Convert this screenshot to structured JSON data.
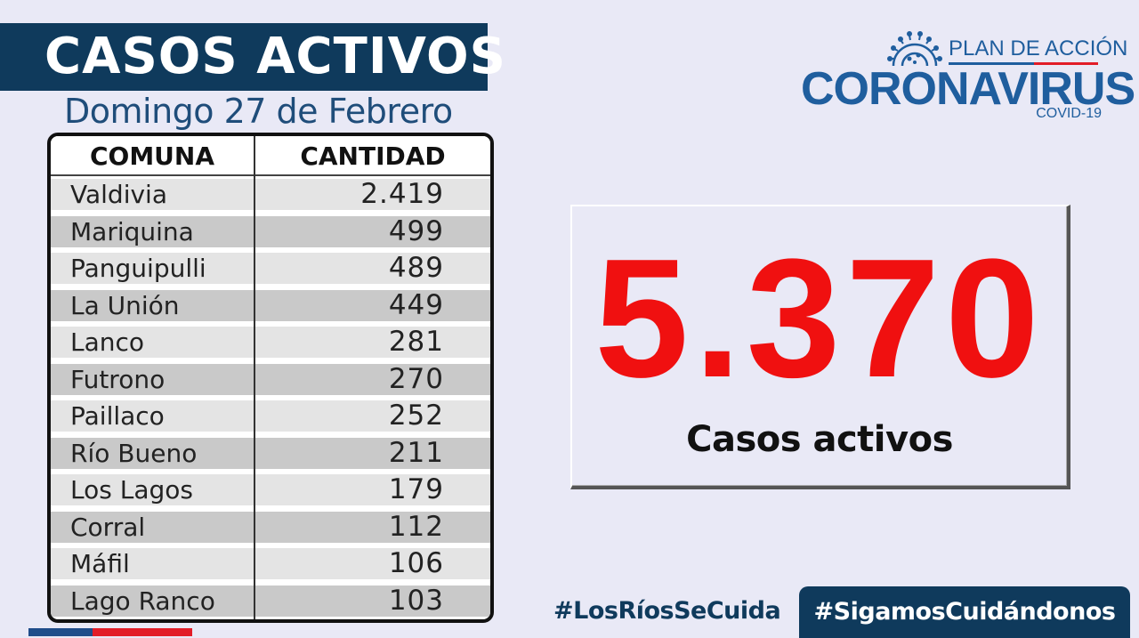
{
  "header": {
    "title": "CASOS ACTIVOS",
    "subtitle": "Domingo 27 de Febrero"
  },
  "table": {
    "headers": {
      "comuna": "COMUNA",
      "cantidad": "CANTIDAD"
    },
    "rows": [
      {
        "comuna": "Valdivia",
        "cantidad": "2.419"
      },
      {
        "comuna": "Mariquina",
        "cantidad": "499"
      },
      {
        "comuna": "Panguipulli",
        "cantidad": "489"
      },
      {
        "comuna": "La Unión",
        "cantidad": "449"
      },
      {
        "comuna": "Lanco",
        "cantidad": "281"
      },
      {
        "comuna": "Futrono",
        "cantidad": "270"
      },
      {
        "comuna": "Paillaco",
        "cantidad": "252"
      },
      {
        "comuna": "Río Bueno",
        "cantidad": "211"
      },
      {
        "comuna": "Los Lagos",
        "cantidad": "179"
      },
      {
        "comuna": "Corral",
        "cantidad": "112"
      },
      {
        "comuna": "Máfil",
        "cantidad": "106"
      },
      {
        "comuna": "Lago Ranco",
        "cantidad": "103"
      }
    ]
  },
  "logo": {
    "plan": "PLAN DE ACCIÓN",
    "name": "CORONAVIRUS",
    "sub": "COVID-19",
    "icon": "virus-icon"
  },
  "total": {
    "value": "5.370",
    "label": "Casos activos"
  },
  "footer": {
    "hashtag_1": "#LosRíosSeCuida",
    "hashtag_2": "#SigamosCuidándonos"
  },
  "colors": {
    "navy": "#0f3a5c",
    "brand_blue": "#1f5e9e",
    "accent_red": "#e21d28",
    "number_red": "#f01010",
    "background": "#e9e9f6"
  }
}
